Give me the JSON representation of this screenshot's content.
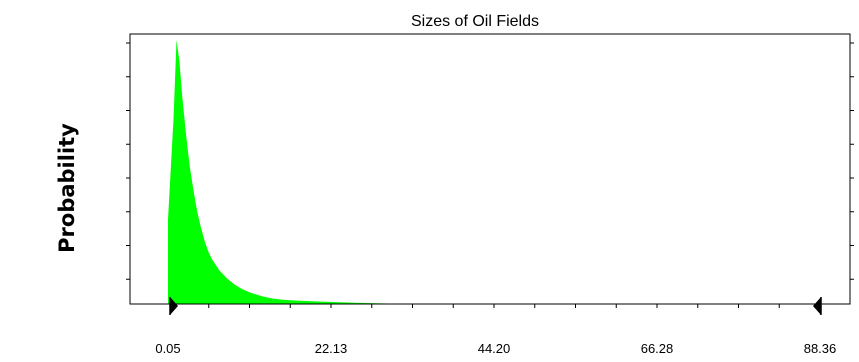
{
  "chart_data": {
    "type": "area",
    "title": "Sizes of Oil Fields",
    "xlabel": "",
    "ylabel": "Probability",
    "x_ticks": [
      "0.05",
      "22.13",
      "44.20",
      "66.28",
      "88.36"
    ],
    "xlim": [
      0.05,
      88.36
    ],
    "y_tick_labels_shown": false,
    "grid": false,
    "fill_color": "#00ff00",
    "series": [
      {
        "x": [
          0.05,
          0.8,
          1.2,
          1.6,
          2.0,
          2.5,
          3.0,
          3.5,
          4.0,
          4.5,
          5.0,
          5.5,
          6.0,
          7.0,
          8.0,
          9.0,
          10.0,
          11.0,
          12.0,
          13.0,
          14.0,
          15.0,
          16.0,
          18.0,
          20.0,
          22.0,
          24.0,
          26.0,
          30.0,
          40.0,
          50.0,
          60.0,
          70.0,
          80.0,
          88.36
        ],
        "y": [
          0.32,
          0.7,
          1.0,
          0.92,
          0.78,
          0.64,
          0.52,
          0.43,
          0.35,
          0.29,
          0.24,
          0.2,
          0.17,
          0.128,
          0.098,
          0.075,
          0.058,
          0.045,
          0.036,
          0.028,
          0.022,
          0.018,
          0.015,
          0.012,
          0.01,
          0.008,
          0.006,
          0.004,
          0.002,
          0.001,
          0.0005,
          0.0003,
          0.0002,
          0.0001,
          0.0
        ]
      }
    ]
  }
}
